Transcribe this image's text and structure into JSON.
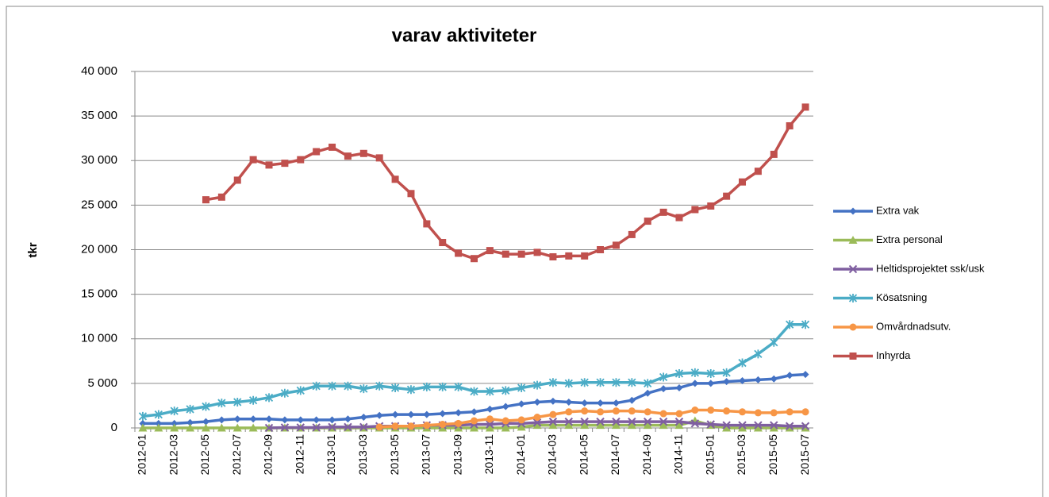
{
  "chart_data": {
    "type": "line",
    "title": "varav aktiviteter",
    "y_label": "tkr",
    "categories": [
      "2012-01",
      null,
      "2012-03",
      null,
      "2012-05",
      null,
      "2012-07",
      null,
      "2012-09",
      null,
      "2012-11",
      null,
      "2013-01",
      null,
      "2013-03",
      null,
      "2013-05",
      null,
      "2013-07",
      null,
      "2013-09",
      null,
      "2013-11",
      null,
      "2014-01",
      null,
      "2014-03",
      null,
      "2014-05",
      null,
      "2014-07",
      null,
      "2014-09",
      null,
      "2014-11",
      null,
      "2015-01",
      null,
      "2015-03",
      null,
      "2015-05",
      null,
      "2015-07"
    ],
    "ylim": [
      0,
      40000
    ],
    "yticks": [
      0,
      {
        "value": 5000,
        "label": "5 000"
      },
      {
        "value": 10000,
        "label": "10 000"
      },
      {
        "value": 15000,
        "label": "15 000"
      },
      {
        "value": 20000,
        "label": "20 000"
      },
      {
        "value": 25000,
        "label": "25 000"
      },
      {
        "value": 30000,
        "label": "30 000"
      },
      {
        "value": 35000,
        "label": "35 000"
      },
      {
        "value": 40000,
        "label": "40 000"
      }
    ],
    "grid": true,
    "legend": "right",
    "series": [
      {
        "name": "Extra vak",
        "color": "#4472c4",
        "marker": "diamond",
        "values": [
          500,
          500,
          500,
          600,
          700,
          900,
          1000,
          1000,
          1000,
          900,
          900,
          900,
          900,
          1000,
          1200,
          1400,
          1500,
          1500,
          1500,
          1600,
          1700,
          1800,
          2100,
          2400,
          2700,
          2900,
          3000,
          2900,
          2800,
          2800,
          2800,
          3100,
          3900,
          4400,
          4500,
          5000,
          5000,
          5200,
          5300,
          5400,
          5500,
          5900,
          6000
        ]
      },
      {
        "name": "Extra personal",
        "color": "#9bbb59",
        "marker": "triangle",
        "values": [
          0,
          0,
          0,
          0,
          0,
          0,
          0,
          0,
          0,
          0,
          0,
          0,
          0,
          0,
          0,
          0,
          0,
          0,
          0,
          0,
          0,
          0,
          0,
          0,
          100,
          300,
          300,
          300,
          300,
          300,
          300,
          300,
          300,
          300,
          300,
          800,
          300,
          0,
          0,
          0,
          0,
          0,
          0
        ]
      },
      {
        "name": "Heltidsprojektet ssk/usk",
        "color": "#7f5fa0",
        "marker": "x",
        "values": [
          null,
          null,
          null,
          null,
          null,
          null,
          null,
          null,
          0,
          50,
          50,
          50,
          100,
          100,
          100,
          200,
          200,
          200,
          300,
          300,
          300,
          400,
          400,
          500,
          500,
          600,
          700,
          700,
          700,
          700,
          700,
          700,
          700,
          700,
          700,
          500,
          400,
          300,
          300,
          300,
          300,
          200,
          200
        ]
      },
      {
        "name": "Kösatsning",
        "color": "#4bacc6",
        "marker": "star",
        "values": [
          1300,
          1500,
          1900,
          2100,
          2400,
          2800,
          2900,
          3100,
          3400,
          3900,
          4200,
          4700,
          4700,
          4700,
          4400,
          4700,
          4500,
          4300,
          4600,
          4600,
          4600,
          4100,
          4100,
          4200,
          4500,
          4800,
          5100,
          5000,
          5100,
          5100,
          5100,
          5100,
          5000,
          5700,
          6100,
          6200,
          6100,
          6200,
          7300,
          8300,
          9600,
          11600,
          11600
        ]
      },
      {
        "name": "Omvårdnadsutv.",
        "color": "#f79646",
        "marker": "circle",
        "values": [
          null,
          null,
          null,
          null,
          null,
          null,
          null,
          null,
          null,
          null,
          null,
          null,
          null,
          null,
          null,
          100,
          200,
          200,
          300,
          400,
          500,
          800,
          1000,
          800,
          900,
          1200,
          1500,
          1800,
          1900,
          1800,
          1900,
          1900,
          1800,
          1600,
          1600,
          2000,
          2000,
          1900,
          1800,
          1700,
          1700,
          1800,
          1800
        ]
      },
      {
        "name": "Inhyrda",
        "color": "#c0504d",
        "marker": "square",
        "values": [
          null,
          null,
          null,
          null,
          25600,
          25900,
          27800,
          30100,
          29500,
          29700,
          30100,
          31000,
          31500,
          30500,
          30800,
          30300,
          27900,
          26300,
          22900,
          20800,
          19600,
          19000,
          19900,
          19500,
          19500,
          19700,
          19200,
          19300,
          19300,
          20000,
          20500,
          21700,
          23200,
          24200,
          23600,
          24500,
          24900,
          26000,
          27600,
          28800,
          30700,
          33900,
          36000
        ]
      }
    ]
  }
}
